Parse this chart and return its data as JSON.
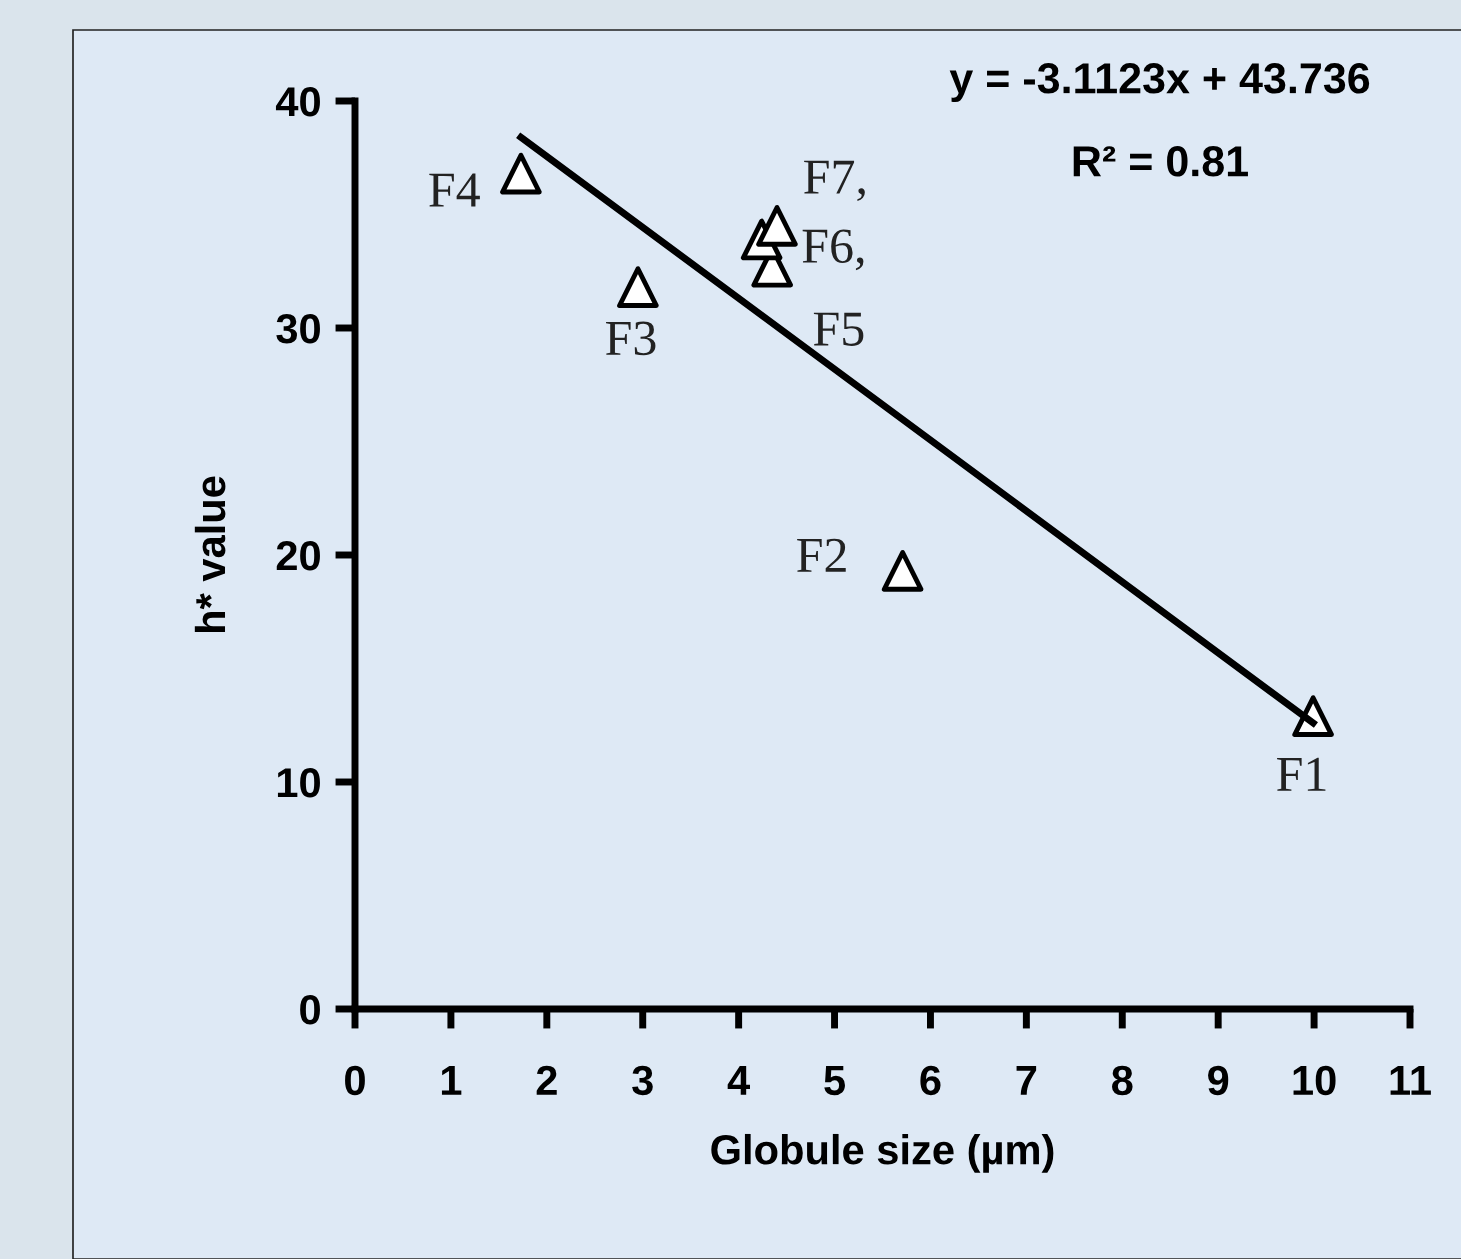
{
  "chart_data": {
    "type": "scatter",
    "xlabel": "Globule size (µm)",
    "ylabel": "h* value",
    "xlim": [
      0,
      11
    ],
    "xticks": [
      0,
      1,
      2,
      3,
      4,
      5,
      6,
      7,
      8,
      9,
      10,
      11
    ],
    "ylim": [
      0,
      40
    ],
    "yticks": [
      0,
      10,
      20,
      30,
      40
    ],
    "grid": false,
    "legend": false,
    "series": [
      {
        "marker": "triangle",
        "color": "#ffffff",
        "x": [
          9.99,
          5.71,
          2.95,
          1.73,
          4.35,
          4.24,
          4.4
        ],
        "values": [
          12.9,
          19.3,
          31.8,
          36.8,
          32.7,
          33.9,
          34.5
        ]
      },
      {
        "type": "line",
        "marker": "none",
        "color": "#000000",
        "x": [
          1.73,
          9.99
        ],
        "values": [
          38.4,
          12.6
        ]
      }
    ],
    "annotations": [
      {
        "text": "F1",
        "x": 9.99,
        "y": 12.9
      },
      {
        "text": "F2",
        "x": 5.71,
        "y": 19.3
      },
      {
        "text": "F3",
        "x": 2.95,
        "y": 31.8
      },
      {
        "text": "F4",
        "x": 1.73,
        "y": 36.8
      },
      {
        "text": "F5",
        "x": 4.35,
        "y": 32.7
      },
      {
        "text": "F6,",
        "x": 4.24,
        "y": 33.9
      },
      {
        "text": "F7,",
        "x": 4.4,
        "y": 34.5
      },
      "y = -3.1123x + 43.736",
      "R² = 0.81"
    ]
  }
}
